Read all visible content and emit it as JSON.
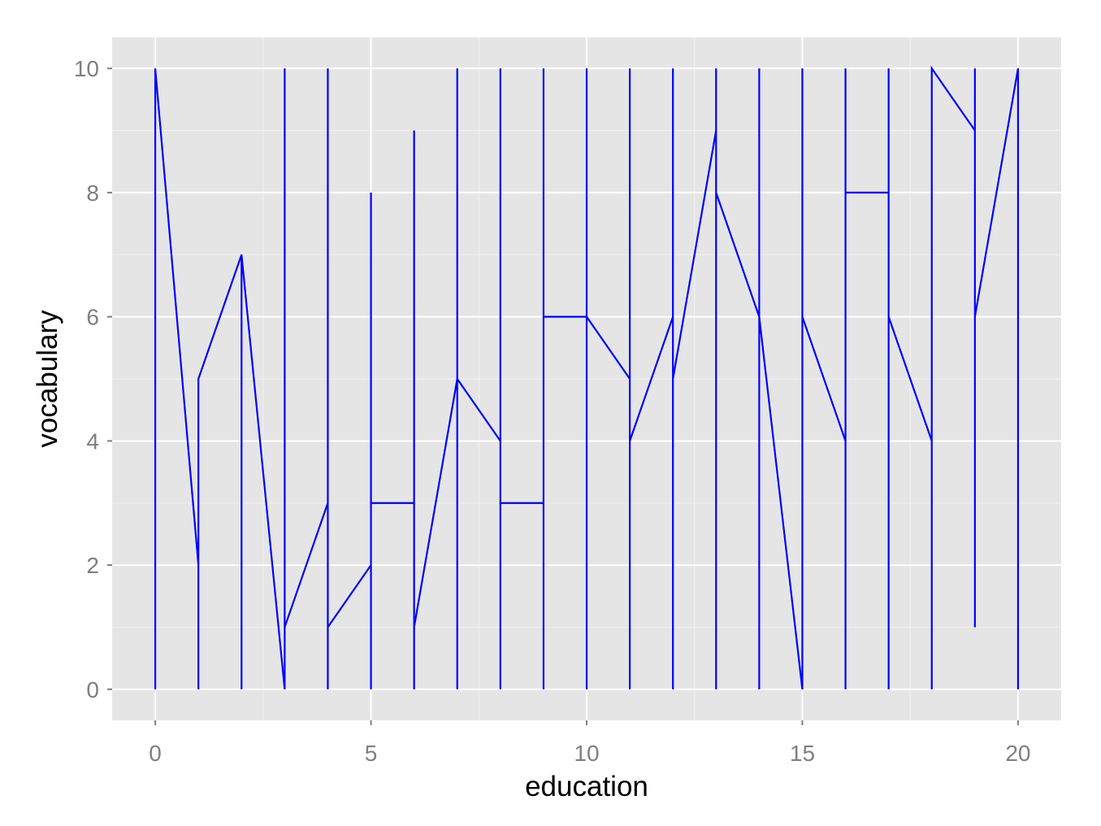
{
  "chart_data": {
    "type": "line",
    "xlabel": "education",
    "ylabel": "vocabulary",
    "xlim": [
      -1,
      21
    ],
    "ylim": [
      -0.5,
      10.5
    ],
    "x_ticks": [
      0,
      5,
      10,
      15,
      20
    ],
    "x_tick_labels": [
      "0",
      "5",
      "10",
      "15",
      "20"
    ],
    "y_ticks": [
      0,
      2,
      4,
      6,
      8,
      10
    ],
    "y_tick_labels": [
      "0",
      "2",
      "4",
      "6",
      "8",
      "10"
    ],
    "grid": true,
    "colors": {
      "panel": "#e5e5e5",
      "grid": "#ffffff",
      "line": "#0000ff"
    },
    "series": [
      {
        "points": [
          [
            0,
            10
          ],
          [
            0,
            0
          ],
          [
            0,
            10
          ],
          [
            1,
            2
          ],
          [
            1,
            0
          ],
          [
            1,
            5
          ],
          [
            2,
            7
          ],
          [
            2,
            0
          ],
          [
            2,
            7
          ],
          [
            3,
            0
          ],
          [
            3,
            10
          ],
          [
            3,
            1
          ],
          [
            4,
            3
          ],
          [
            4,
            10
          ],
          [
            4,
            0
          ],
          [
            4,
            1
          ],
          [
            5,
            2
          ],
          [
            5,
            0
          ],
          [
            5,
            8
          ],
          [
            5,
            3
          ],
          [
            6,
            3
          ],
          [
            6,
            0
          ],
          [
            6,
            9
          ],
          [
            6,
            1
          ],
          [
            7,
            5
          ],
          [
            7,
            0
          ],
          [
            7,
            10
          ],
          [
            7,
            5
          ],
          [
            8,
            4
          ],
          [
            8,
            0
          ],
          [
            8,
            10
          ],
          [
            8,
            3
          ],
          [
            9,
            3
          ],
          [
            9,
            0
          ],
          [
            9,
            10
          ],
          [
            9,
            6
          ],
          [
            10,
            6
          ],
          [
            10,
            0
          ],
          [
            10,
            10
          ],
          [
            10,
            6
          ],
          [
            11,
            5
          ],
          [
            11,
            0
          ],
          [
            11,
            10
          ],
          [
            11,
            4
          ],
          [
            12,
            6
          ],
          [
            12,
            0
          ],
          [
            12,
            10
          ],
          [
            12,
            5
          ],
          [
            13,
            9
          ],
          [
            13,
            0
          ],
          [
            13,
            10
          ],
          [
            13,
            8
          ],
          [
            14,
            6
          ],
          [
            14,
            0
          ],
          [
            14,
            10
          ],
          [
            14,
            6
          ],
          [
            15,
            0
          ],
          [
            15,
            10
          ],
          [
            15,
            6
          ],
          [
            16,
            4
          ],
          [
            16,
            0
          ],
          [
            16,
            10
          ],
          [
            16,
            8
          ],
          [
            17,
            8
          ],
          [
            17,
            0
          ],
          [
            17,
            10
          ],
          [
            17,
            6
          ],
          [
            18,
            4
          ],
          [
            18,
            0
          ],
          [
            18,
            10
          ],
          [
            19,
            9
          ],
          [
            19,
            10
          ],
          [
            19,
            1
          ],
          [
            19,
            6
          ],
          [
            20,
            10
          ],
          [
            20,
            0
          ],
          [
            20,
            10
          ]
        ]
      }
    ]
  }
}
